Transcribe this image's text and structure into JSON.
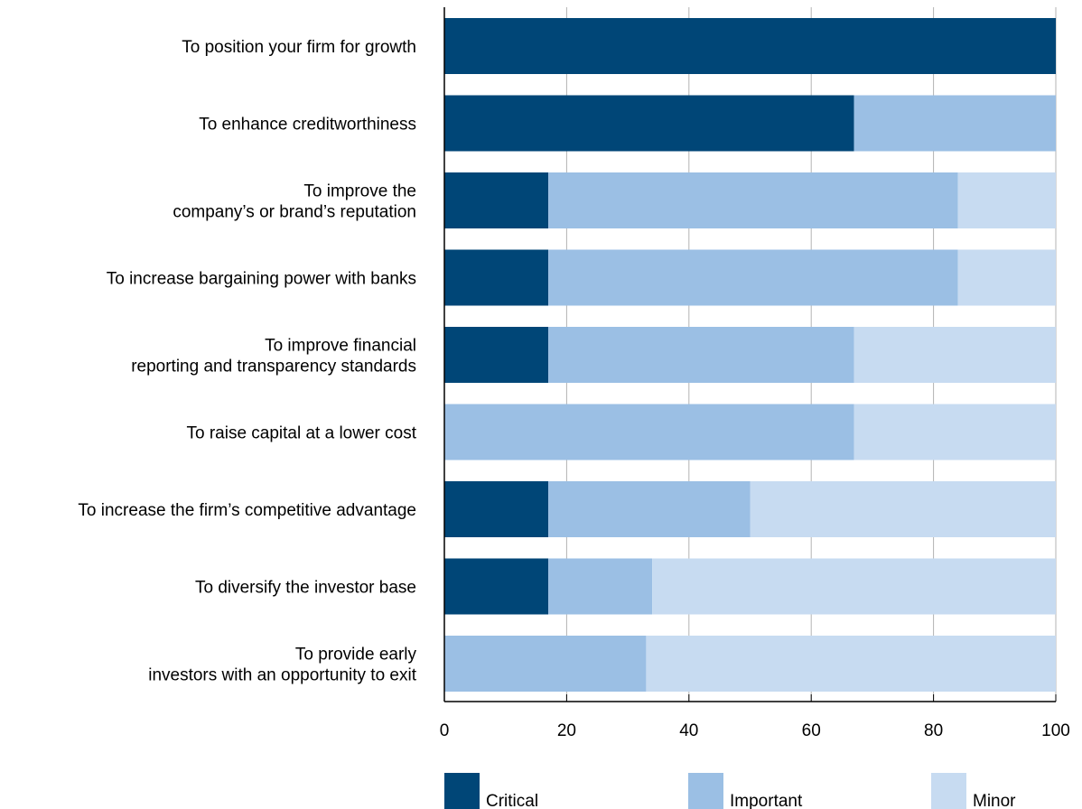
{
  "chart_data": {
    "type": "bar",
    "orientation": "horizontal",
    "stacked": true,
    "categories": [
      [
        "To position your firm for growth"
      ],
      [
        "To enhance creditworthiness"
      ],
      [
        "To improve the",
        "company’s or brand’s reputation"
      ],
      [
        "To increase bargaining power with banks"
      ],
      [
        "To improve financial",
        "reporting and transparency standards"
      ],
      [
        "To raise capital at a lower cost"
      ],
      [
        "To increase the firm’s competitive advantage"
      ],
      [
        "To diversify the investor base"
      ],
      [
        "To provide early",
        "investors with an opportunity to exit"
      ]
    ],
    "series": [
      {
        "name": "Critical",
        "color": "#004677",
        "values": [
          100,
          67,
          17,
          17,
          17,
          0,
          17,
          17,
          0
        ]
      },
      {
        "name": "Important",
        "color": "#9bbfe4",
        "values": [
          0,
          33,
          67,
          67,
          50,
          67,
          33,
          17,
          33
        ]
      },
      {
        "name": "Minor",
        "color": "#c7dbf1",
        "values": [
          0,
          0,
          16,
          16,
          33,
          33,
          50,
          66,
          67
        ]
      }
    ],
    "xlim": [
      0,
      100
    ],
    "xticks": [
      "0",
      "20",
      "40",
      "60",
      "80",
      "100"
    ],
    "grid": true,
    "legend_position": "bottom"
  }
}
